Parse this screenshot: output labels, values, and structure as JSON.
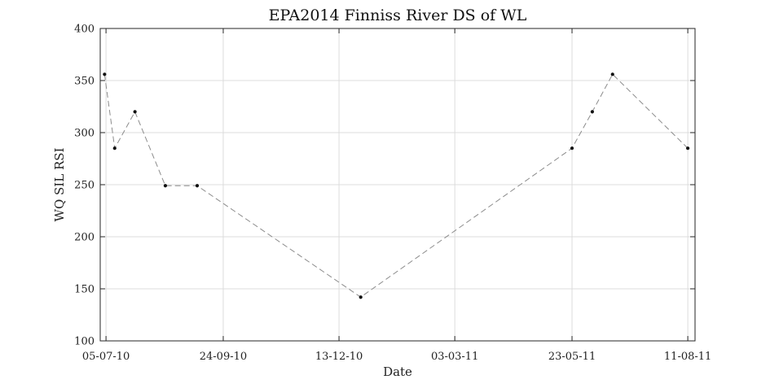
{
  "chart_data": {
    "type": "line",
    "title": "EPA2014 Finniss River DS of WL",
    "xlabel": "Date",
    "ylabel": "WQ SIL RSI",
    "x_type": "date",
    "x_format": "DD-MM-YY",
    "xlim": [
      "2010-07-01",
      "2011-08-16"
    ],
    "ylim": [
      100,
      400
    ],
    "y_ticks": [
      100,
      150,
      200,
      250,
      300,
      350,
      400
    ],
    "x_ticks": [
      "2010-07-05",
      "2010-09-24",
      "2010-12-13",
      "2011-03-03",
      "2011-05-23",
      "2011-08-11"
    ],
    "x_tick_labels": [
      "05-07-10",
      "24-09-10",
      "13-12-10",
      "03-03-11",
      "23-05-11",
      "11-08-11"
    ],
    "grid": true,
    "series": [
      {
        "x": [
          "2010-07-04",
          "2010-07-11",
          "2010-07-25",
          "2010-08-15",
          "2010-09-06",
          "2010-12-28",
          "2011-05-23",
          "2011-06-06",
          "2011-06-20",
          "2011-08-11"
        ],
        "y": [
          356,
          285,
          320,
          249,
          249,
          142,
          285,
          320,
          356,
          285
        ],
        "line_style": "dashed",
        "line_color": "#8c8c8c",
        "marker_color": "#111111"
      }
    ]
  }
}
